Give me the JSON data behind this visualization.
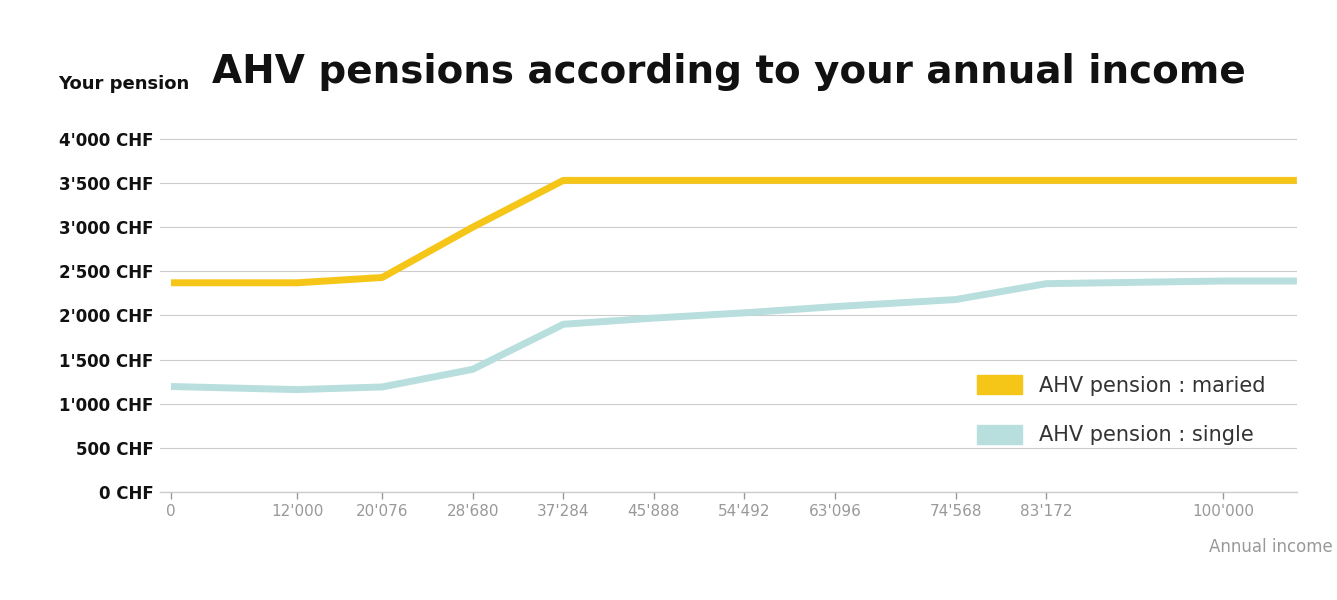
{
  "title": "AHV pensions according to your annual income",
  "xlabel": "Annual income (CHF)",
  "ylabel": "Your pension",
  "background_color": "#ffffff",
  "title_fontsize": 28,
  "title_fontweight": "bold",
  "x_ticks": [
    0,
    12000,
    20076,
    28680,
    37284,
    45888,
    54492,
    63096,
    74568,
    83172,
    100000
  ],
  "x_tick_labels": [
    "0",
    "12'000",
    "20'076",
    "28'680",
    "37'284",
    "45'888",
    "54'492",
    "63'096",
    "74'568",
    "83'172",
    "100'000"
  ],
  "y_ticks": [
    0,
    500,
    1000,
    1500,
    2000,
    2500,
    3000,
    3500,
    4000
  ],
  "y_tick_labels": [
    "0 CHF",
    "500 CHF",
    "1'000 CHF",
    "1'500 CHF",
    "2'000 CHF",
    "2'500 CHF",
    "3'000 CHF",
    "3'500 CHF",
    "4'000 CHF"
  ],
  "ylim": [
    0,
    4350
  ],
  "xlim": [
    -1000,
    107000
  ],
  "married_x": [
    0,
    12000,
    20076,
    28680,
    37284,
    45888,
    54492,
    63096,
    74568,
    83172,
    100000,
    107000
  ],
  "married_y": [
    2370,
    2370,
    2430,
    3000,
    3530,
    3530,
    3530,
    3530,
    3530,
    3530,
    3530,
    3530
  ],
  "single_x": [
    0,
    12000,
    20076,
    28680,
    37284,
    45888,
    54492,
    63096,
    74568,
    83172,
    100000,
    107000
  ],
  "single_y": [
    1195,
    1160,
    1190,
    1390,
    1900,
    1970,
    2030,
    2100,
    2180,
    2360,
    2390,
    2390
  ],
  "married_color": "#f5c518",
  "single_color": "#b8dede",
  "married_label": "AHV pension : maried",
  "single_label": "AHV pension : single",
  "line_width": 5,
  "grid_color": "#cccccc",
  "tick_color": "#999999",
  "legend_fontsize": 15
}
